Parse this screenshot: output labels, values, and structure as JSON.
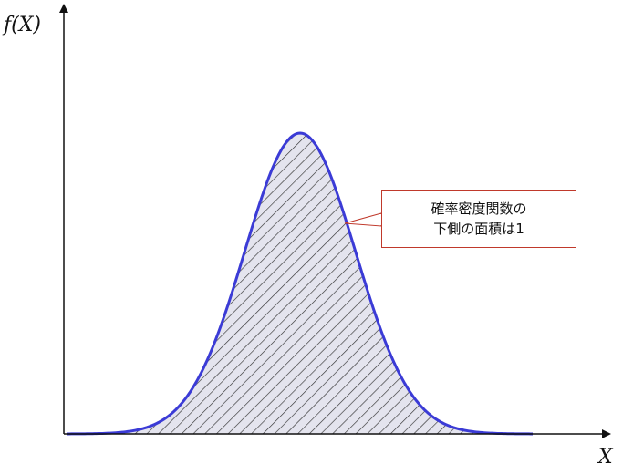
{
  "chart_data": {
    "type": "area",
    "ylabel": "f(X)",
    "xlabel": "X",
    "grid": false,
    "legend": "none",
    "series": [
      {
        "distribution": "normal",
        "mean": 0,
        "sd": 1,
        "x_range": [
          -4.2,
          4.2
        ],
        "fill": "hatched",
        "line_color": "#3b3bd6",
        "hatch_color": "#333333",
        "area_color": "#e4e4ee"
      }
    ],
    "annotation": {
      "lines": [
        "確率密度関数の",
        "下側の面積は1"
      ],
      "border_color": "#c0392b"
    }
  },
  "colors": {
    "axis": "#111111",
    "curve": "#3b3bd6",
    "callout_border": "#c0392b"
  }
}
